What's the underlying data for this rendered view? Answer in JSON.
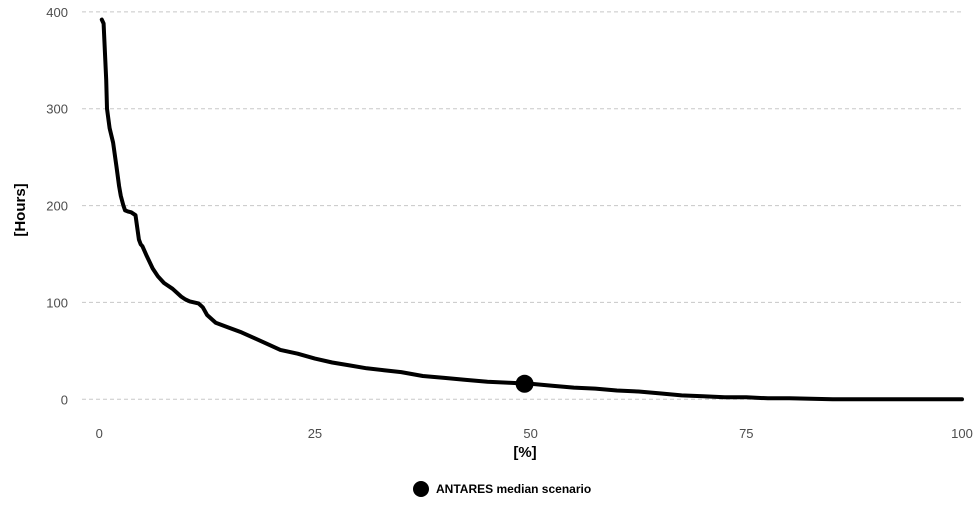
{
  "chart_data": {
    "type": "line",
    "title": "",
    "xlabel": "[%]",
    "ylabel": "[Hours]",
    "xlim": [
      -2,
      100
    ],
    "ylim": [
      -8,
      404
    ],
    "x_ticks": [
      0,
      25,
      50,
      75,
      100
    ],
    "y_ticks": [
      0,
      100,
      200,
      300,
      400
    ],
    "grid": "horizontal dashed",
    "legend_position": "bottom",
    "colors": {
      "line": "#000000",
      "grid": "#c8c8c8",
      "tick_text": "#4d4d4d"
    },
    "series": [
      {
        "type": "line",
        "x": [
          0.3,
          0.5,
          0.6,
          0.8,
          0.9,
          1.2,
          1.6,
          2.0,
          2.3,
          2.5,
          2.8,
          3.0,
          3.3,
          3.7,
          4.2,
          4.6,
          4.8,
          5.0,
          5.5,
          6.2,
          6.8,
          7.5,
          8.5,
          9.5,
          10.0,
          10.5,
          11.5,
          12.0,
          12.5,
          13.5,
          15.0,
          16.5,
          18.0,
          19.5,
          21.0,
          23.0,
          25.0,
          27.0,
          29.0,
          31.0,
          33.0,
          35.0,
          37.5,
          40.0,
          42.5,
          45.0,
          47.5,
          50.0,
          52.5,
          55.0,
          57.5,
          60.0,
          62.5,
          65.0,
          67.5,
          70.0,
          72.5,
          75.0,
          77.5,
          80.0,
          85.0,
          90.0,
          95.0,
          100.0
        ],
        "y": [
          392,
          388,
          370,
          330,
          300,
          280,
          265,
          240,
          220,
          210,
          200,
          195,
          194,
          193,
          190,
          165,
          160,
          158,
          148,
          135,
          127,
          120,
          114,
          106,
          103,
          101,
          99,
          95,
          87,
          79,
          74,
          69,
          63,
          57,
          51,
          47,
          42,
          38,
          35,
          32,
          30,
          28,
          24,
          22,
          20,
          18,
          17,
          16,
          14,
          12,
          11,
          9,
          8,
          6,
          4,
          3,
          2,
          2,
          1,
          1,
          0,
          0,
          0,
          0
        ]
      },
      {
        "type": "scatter",
        "name": "ANTARES median scenario",
        "x": [
          49.3
        ],
        "y": [
          16
        ]
      }
    ]
  }
}
